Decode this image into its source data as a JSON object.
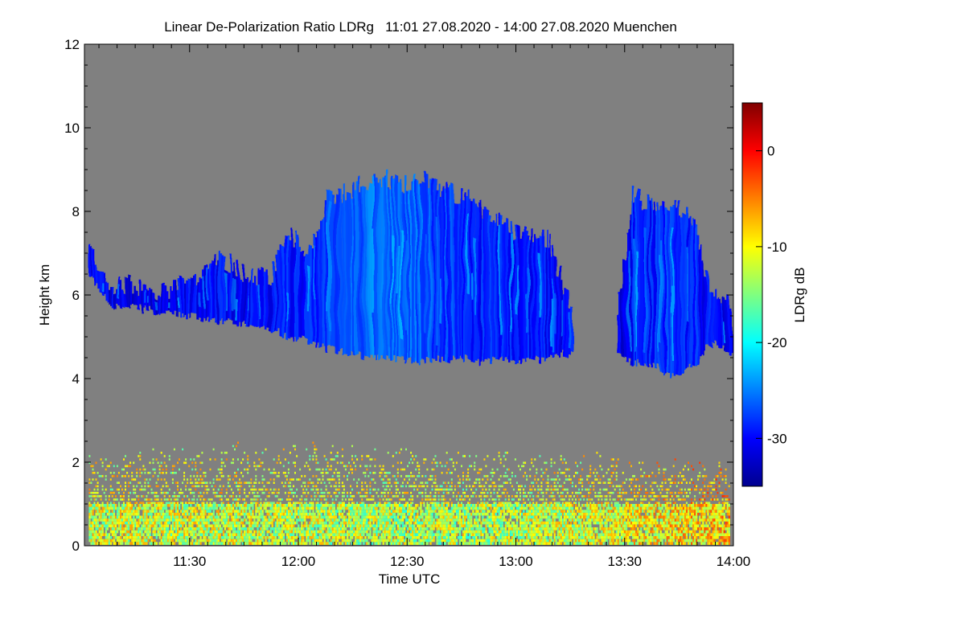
{
  "chart_data": {
    "type": "heatmap",
    "title": "Linear De-Polarization Ratio LDRg   11:01 27.08.2020 - 14:00 27.08.2020 Muenchen",
    "xlabel": "Time UTC",
    "ylabel": "Height km",
    "x_range_minutes": [
      661,
      840
    ],
    "x_ticks": [
      {
        "label": "11:30",
        "minutes": 690
      },
      {
        "label": "12:00",
        "minutes": 720
      },
      {
        "label": "12:30",
        "minutes": 750
      },
      {
        "label": "13:00",
        "minutes": 780
      },
      {
        "label": "13:30",
        "minutes": 810
      },
      {
        "label": "14:00",
        "minutes": 840
      }
    ],
    "ylim": [
      0,
      12
    ],
    "y_ticks": [
      0,
      2,
      4,
      6,
      8,
      10,
      12
    ],
    "colorbar": {
      "label": "LDRg dB",
      "range": [
        -35,
        5
      ],
      "ticks": [
        0,
        -10,
        -20,
        -30
      ],
      "colormap": "jet"
    },
    "no_signal_color": "#808080",
    "features": [
      {
        "name": "mid-level ice cloud layer",
        "ldr_db_range": [
          -33,
          -22
        ],
        "profile": [
          {
            "t": 662,
            "base": 6.5,
            "top": 7.2,
            "ldr": -30
          },
          {
            "t": 668,
            "base": 5.7,
            "top": 6.3,
            "ldr": -31
          },
          {
            "t": 675,
            "base": 5.7,
            "top": 6.3,
            "ldr": -31
          },
          {
            "t": 682,
            "base": 5.6,
            "top": 6.1,
            "ldr": -31
          },
          {
            "t": 690,
            "base": 5.5,
            "top": 6.3,
            "ldr": -30
          },
          {
            "t": 697,
            "base": 5.4,
            "top": 7.0,
            "ldr": -30
          },
          {
            "t": 705,
            "base": 5.3,
            "top": 6.6,
            "ldr": -30
          },
          {
            "t": 712,
            "base": 5.2,
            "top": 6.4,
            "ldr": -30
          },
          {
            "t": 717,
            "base": 5.0,
            "top": 7.6,
            "ldr": -29
          },
          {
            "t": 722,
            "base": 4.9,
            "top": 7.0,
            "ldr": -29
          },
          {
            "t": 728,
            "base": 4.7,
            "top": 8.3,
            "ldr": -28
          },
          {
            "t": 735,
            "base": 4.6,
            "top": 8.6,
            "ldr": -27
          },
          {
            "t": 742,
            "base": 4.5,
            "top": 8.9,
            "ldr": -25
          },
          {
            "t": 748,
            "base": 4.5,
            "top": 8.7,
            "ldr": -26
          },
          {
            "t": 755,
            "base": 4.4,
            "top": 8.8,
            "ldr": -27
          },
          {
            "t": 762,
            "base": 4.5,
            "top": 8.5,
            "ldr": -28
          },
          {
            "t": 768,
            "base": 4.4,
            "top": 8.3,
            "ldr": -29
          },
          {
            "t": 775,
            "base": 4.5,
            "top": 7.8,
            "ldr": -29
          },
          {
            "t": 782,
            "base": 4.4,
            "top": 7.5,
            "ldr": -29
          },
          {
            "t": 789,
            "base": 4.5,
            "top": 7.4,
            "ldr": -30
          },
          {
            "t": 795,
            "base": 4.6,
            "top": 5.7,
            "ldr": -30
          },
          {
            "t": 808,
            "base": 4.6,
            "top": 5.6,
            "ldr": -31
          },
          {
            "t": 812,
            "base": 4.4,
            "top": 8.5,
            "ldr": -29
          },
          {
            "t": 818,
            "base": 4.3,
            "top": 8.1,
            "ldr": -29
          },
          {
            "t": 824,
            "base": 4.0,
            "top": 8.3,
            "ldr": -28
          },
          {
            "t": 829,
            "base": 4.3,
            "top": 7.7,
            "ldr": -29
          },
          {
            "t": 834,
            "base": 4.9,
            "top": 6.0,
            "ldr": -30
          },
          {
            "t": 839,
            "base": 4.6,
            "top": 5.8,
            "ldr": -30
          }
        ]
      },
      {
        "name": "boundary layer aerosol",
        "ldr_db_range": [
          -22,
          -5
        ],
        "profile": [
          {
            "t": 662,
            "base": 0.0,
            "top": 1.6,
            "ldr": -12
          },
          {
            "t": 700,
            "base": 0.0,
            "top": 1.8,
            "ldr": -12
          },
          {
            "t": 740,
            "base": 0.0,
            "top": 1.8,
            "ldr": -13
          },
          {
            "t": 780,
            "base": 0.0,
            "top": 1.6,
            "ldr": -13
          },
          {
            "t": 820,
            "base": 0.0,
            "top": 1.5,
            "ldr": -10
          },
          {
            "t": 839,
            "base": 0.0,
            "top": 1.4,
            "ldr": -8
          }
        ]
      }
    ]
  }
}
